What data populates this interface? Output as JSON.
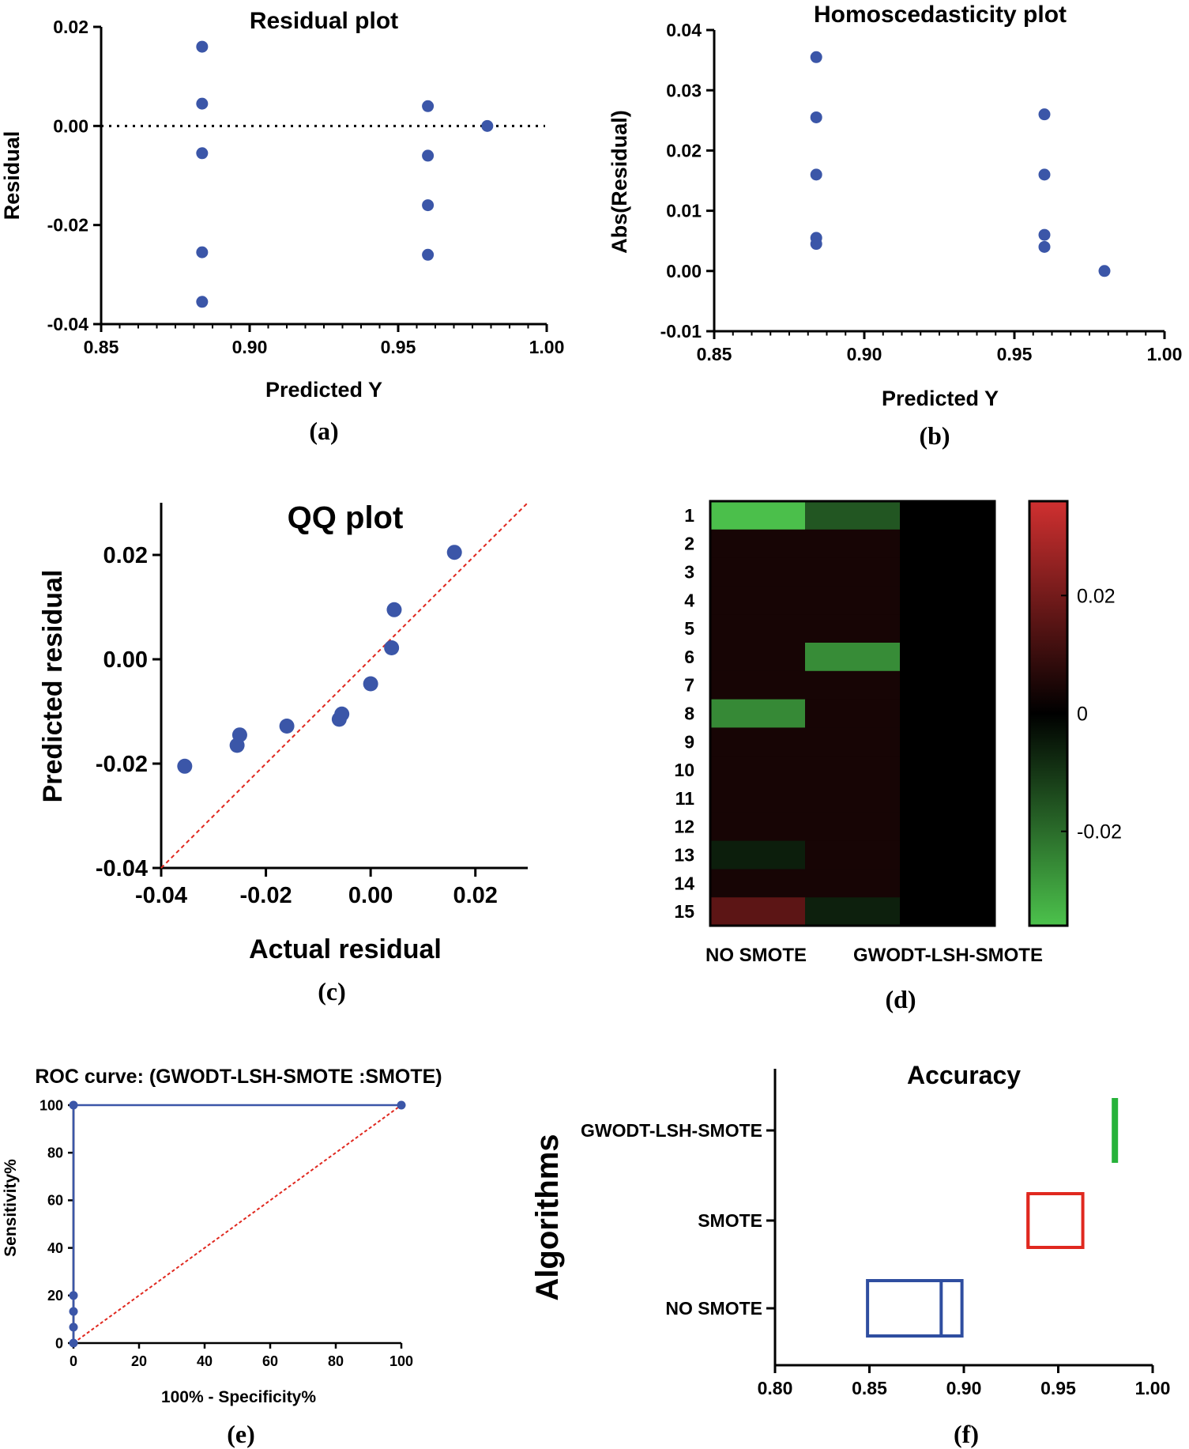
{
  "colors": {
    "point": "#3b56a8",
    "red_dash": "#e0281f",
    "box_f_nosmote": "#2f4ea0",
    "box_f_smote": "#e0281f",
    "box_f_gwodt": "#27b23a"
  },
  "panels": {
    "a": {
      "caption": "(a)"
    },
    "b": {
      "caption": "(b)"
    },
    "c": {
      "caption": "(c)"
    },
    "d": {
      "caption": "(d)"
    },
    "e": {
      "caption": "(e)"
    },
    "f": {
      "caption": "(f)"
    }
  },
  "chart_data": [
    {
      "panel": "a",
      "type": "scatter",
      "title": "Residual plot",
      "xlabel": "Predicted Y",
      "ylabel": "Residual",
      "xlim": [
        0.85,
        1.0
      ],
      "ylim": [
        -0.04,
        0.02
      ],
      "xticks": [
        "0.85",
        "0.90",
        "0.95",
        "1.00"
      ],
      "yticks": [
        "-0.04",
        "-0.02",
        "0.00",
        "0.02"
      ],
      "reference_line": {
        "y": 0,
        "style": "dotted"
      },
      "points": [
        [
          0.884,
          0.016
        ],
        [
          0.884,
          0.0045
        ],
        [
          0.884,
          -0.0055
        ],
        [
          0.884,
          -0.0255
        ],
        [
          0.884,
          -0.0355
        ],
        [
          0.96,
          0.004
        ],
        [
          0.96,
          -0.006
        ],
        [
          0.96,
          -0.016
        ],
        [
          0.96,
          -0.026
        ],
        [
          0.98,
          0.0
        ]
      ]
    },
    {
      "panel": "b",
      "type": "scatter",
      "title": "Homoscedasticity plot",
      "xlabel": "Predicted Y",
      "ylabel": "Abs(Residual)",
      "xlim": [
        0.85,
        1.0
      ],
      "ylim": [
        -0.01,
        0.04
      ],
      "xticks": [
        "0.85",
        "0.90",
        "0.95",
        "1.00"
      ],
      "yticks": [
        "-0.01",
        "0.00",
        "0.01",
        "0.02",
        "0.03",
        "0.04"
      ],
      "points": [
        [
          0.884,
          0.0355
        ],
        [
          0.884,
          0.0255
        ],
        [
          0.884,
          0.016
        ],
        [
          0.884,
          0.0055
        ],
        [
          0.884,
          0.0045
        ],
        [
          0.96,
          0.026
        ],
        [
          0.96,
          0.016
        ],
        [
          0.96,
          0.006
        ],
        [
          0.96,
          0.004
        ],
        [
          0.98,
          0.0
        ]
      ]
    },
    {
      "panel": "c",
      "type": "scatter",
      "title": "QQ plot",
      "xlabel": "Actual residual",
      "ylabel": "Predicted residual",
      "xlim": [
        -0.04,
        0.03
      ],
      "ylim": [
        -0.04,
        0.03
      ],
      "xticks": [
        "-0.04",
        "-0.02",
        "0.00",
        "0.02"
      ],
      "yticks": [
        "-0.04",
        "-0.02",
        "0.00",
        "0.02"
      ],
      "reference_line": {
        "from": [
          -0.04,
          -0.04
        ],
        "to": [
          0.03,
          0.03
        ],
        "style": "dashed"
      },
      "points": [
        [
          -0.0355,
          -0.0205
        ],
        [
          -0.0255,
          -0.0165
        ],
        [
          -0.025,
          -0.0145
        ],
        [
          -0.016,
          -0.0128
        ],
        [
          -0.006,
          -0.0115
        ],
        [
          -0.0055,
          -0.0105
        ],
        [
          0.0,
          -0.0047
        ],
        [
          0.004,
          0.0022
        ],
        [
          0.0045,
          0.0095
        ],
        [
          0.016,
          0.0205
        ]
      ]
    },
    {
      "panel": "d",
      "type": "heatmap",
      "rows": [
        "1",
        "2",
        "3",
        "4",
        "5",
        "6",
        "7",
        "8",
        "9",
        "10",
        "11",
        "12",
        "13",
        "14",
        "15"
      ],
      "columns": [
        "NO SMOTE",
        "GWODT-LSH-SMOTE",
        ""
      ],
      "column_labels": [
        "NO SMOTE",
        "GWODT-LSH-SMOTE"
      ],
      "values": [
        [
          -0.0355,
          -0.016,
          0
        ],
        [
          0.004,
          0.004,
          0
        ],
        [
          0.004,
          0.004,
          0
        ],
        [
          0.004,
          0.004,
          0
        ],
        [
          0.004,
          0.004,
          0
        ],
        [
          0.004,
          -0.026,
          0
        ],
        [
          0.004,
          0.004,
          0
        ],
        [
          -0.0255,
          0.004,
          0
        ],
        [
          0.004,
          0.004,
          0
        ],
        [
          0.004,
          0.004,
          0
        ],
        [
          0.004,
          0.004,
          0
        ],
        [
          0.004,
          0.004,
          0
        ],
        [
          -0.0055,
          0.004,
          0
        ],
        [
          0.004,
          0.004,
          0
        ],
        [
          0.016,
          -0.006,
          0
        ]
      ],
      "colorbar": {
        "range": [
          -0.036,
          0.036
        ],
        "ticks": [
          0.02,
          0,
          -0.02
        ],
        "tick_labels": [
          "0.02",
          "0",
          "-0.02"
        ],
        "low_color": "#4cc24c",
        "mid_color": "#000000",
        "high_color": "#d03030"
      }
    },
    {
      "panel": "e",
      "type": "line",
      "title": "ROC curve: (GWODT-LSH-SMOTE :SMOTE)",
      "xlabel": "100% - Specificity%",
      "ylabel": "Sensitivity%",
      "xlim": [
        0,
        100
      ],
      "ylim": [
        0,
        100
      ],
      "xticks": [
        "0",
        "20",
        "40",
        "60",
        "80",
        "100"
      ],
      "yticks": [
        "0",
        "20",
        "40",
        "60",
        "80",
        "100"
      ],
      "series": [
        {
          "points": [
            [
              0,
              0
            ],
            [
              0,
              6.7
            ],
            [
              0,
              13.3
            ],
            [
              0,
              20
            ],
            [
              0,
              100
            ],
            [
              100,
              100
            ]
          ]
        }
      ],
      "reference_line": {
        "from": [
          0,
          0
        ],
        "to": [
          100,
          100
        ],
        "style": "dashed"
      }
    },
    {
      "panel": "f",
      "type": "box",
      "title": "Accuracy",
      "ylabel": "Algorithms",
      "xlim": [
        0.8,
        1.0
      ],
      "xticks": [
        "0.80",
        "0.85",
        "0.90",
        "0.95",
        "1.00"
      ],
      "categories": [
        "GWODT-LSH-SMOTE",
        "SMOTE",
        "NO SMOTE"
      ],
      "boxes": [
        {
          "category": "GWODT-LSH-SMOTE",
          "q1": 0.979,
          "median": 0.98,
          "q3": 0.981
        },
        {
          "category": "SMOTE",
          "q1": 0.934,
          "median": 0.934,
          "q3": 0.963
        },
        {
          "category": "NO SMOTE",
          "q1": 0.849,
          "median": 0.888,
          "q3": 0.899
        }
      ]
    }
  ]
}
